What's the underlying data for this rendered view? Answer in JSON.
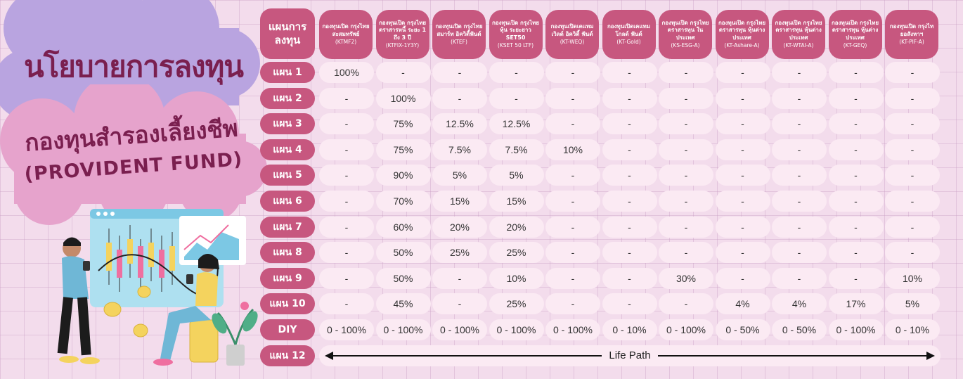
{
  "left_panel": {
    "policy_title": "นโยบายการลงทุน",
    "fund_title": "กองทุนสำรองเลี้ยงชีพ",
    "fund_subtitle": "(PROVIDENT FUND)"
  },
  "table": {
    "plan_header": "แผนการ\nลงทุน",
    "funds": [
      {
        "name": "กองทุนเปิด กรุงไทยสะสมทรัพย์",
        "code": "(KTMF2)"
      },
      {
        "name": "กองทุนเปิด กรุงไทยตราสารหนี้ ระยะ 1 ถึง 3 ปี",
        "code": "(KTFIX-1Y3Y)"
      },
      {
        "name": "กองทุนเปิด กรุงไทยสมาร์ท อิควิตี้ฟันด์",
        "code": "(KTEF)"
      },
      {
        "name": "กองทุนเปิด กรุงไทยหุ้น ระยะยาว SET50",
        "code": "(KSET 50 LTF)"
      },
      {
        "name": "กองทุนเปิดเคแทม เวิลด์ อิควิตี้ ฟันด์",
        "code": "(KT-WEQ)"
      },
      {
        "name": "กองทุนเปิดเคแทม โกลด์ ฟันด์",
        "code": "(KT-Gold)"
      },
      {
        "name": "กองทุนเปิด กรุงไทยตราสารทุน ในประเทศ",
        "code": "(KS-ESG-A)"
      },
      {
        "name": "กองทุนเปิด กรุงไทยตราสารทุน หุ้นต่างประเทศ",
        "code": "(KT-Ashare-A)"
      },
      {
        "name": "กองทุนเปิด กรุงไทยตราสารทุน หุ้นต่างประเทศ",
        "code": "(KT-WTAI-A)"
      },
      {
        "name": "กองทุนเปิด กรุงไทยตราสารทุน หุ้นต่างประเทศ",
        "code": "(KT-GEQ)"
      },
      {
        "name": "กองทุนเปิด กรุงไทยอสังหาฯ",
        "code": "(KT-PIF-A)"
      }
    ],
    "rows": [
      {
        "label": "แผน 1",
        "values": [
          "100%",
          "-",
          "-",
          "-",
          "-",
          "-",
          "-",
          "-",
          "-",
          "-",
          "-"
        ]
      },
      {
        "label": "แผน 2",
        "values": [
          "-",
          "100%",
          "-",
          "-",
          "-",
          "-",
          "-",
          "-",
          "-",
          "-",
          "-"
        ]
      },
      {
        "label": "แผน 3",
        "values": [
          "-",
          "75%",
          "12.5%",
          "12.5%",
          "-",
          "-",
          "-",
          "-",
          "-",
          "-",
          "-"
        ]
      },
      {
        "label": "แผน 4",
        "values": [
          "-",
          "75%",
          "7.5%",
          "7.5%",
          "10%",
          "-",
          "-",
          "-",
          "-",
          "-",
          "-"
        ]
      },
      {
        "label": "แผน 5",
        "values": [
          "-",
          "90%",
          "5%",
          "5%",
          "-",
          "-",
          "-",
          "-",
          "-",
          "-",
          "-"
        ]
      },
      {
        "label": "แผน 6",
        "values": [
          "-",
          "70%",
          "15%",
          "15%",
          "-",
          "-",
          "-",
          "-",
          "-",
          "-",
          "-"
        ]
      },
      {
        "label": "แผน 7",
        "values": [
          "-",
          "60%",
          "20%",
          "20%",
          "-",
          "-",
          "-",
          "-",
          "-",
          "-",
          "-"
        ]
      },
      {
        "label": "แผน 8",
        "values": [
          "-",
          "50%",
          "25%",
          "25%",
          "-",
          "-",
          "-",
          "-",
          "-",
          "-",
          "-"
        ]
      },
      {
        "label": "แผน 9",
        "values": [
          "-",
          "50%",
          "-",
          "10%",
          "-",
          "-",
          "30%",
          "-",
          "-",
          "-",
          "10%"
        ]
      },
      {
        "label": "แผน 10",
        "values": [
          "-",
          "45%",
          "-",
          "25%",
          "-",
          "-",
          "-",
          "4%",
          "4%",
          "17%",
          "5%"
        ]
      },
      {
        "label": "DIY",
        "values": [
          "0 -  100%",
          "0 - 100%",
          "0 - 100%",
          "0 - 100%",
          "0 - 100%",
          "0 - 10%",
          "0 - 100%",
          "0 - 50%",
          "0 - 50%",
          "0 - 100%",
          "0 - 10%"
        ]
      }
    ],
    "last_row": {
      "label": "แผน 12",
      "span_text": "Life Path"
    }
  },
  "colors": {
    "header_bg": "#c7577f",
    "cell_bg": "#fbeaf3",
    "page_bg": "#f3dcec",
    "title_text": "#7a1f4f",
    "purple_cloud": "#b9a4e0",
    "pink_cloud": "#e6a3cc"
  },
  "icons": [
    "trader-man-illustration",
    "trader-woman-illustration",
    "candlestick-chart-icon",
    "line-chart-icon",
    "gold-coins-icon",
    "potted-plant-icon"
  ]
}
